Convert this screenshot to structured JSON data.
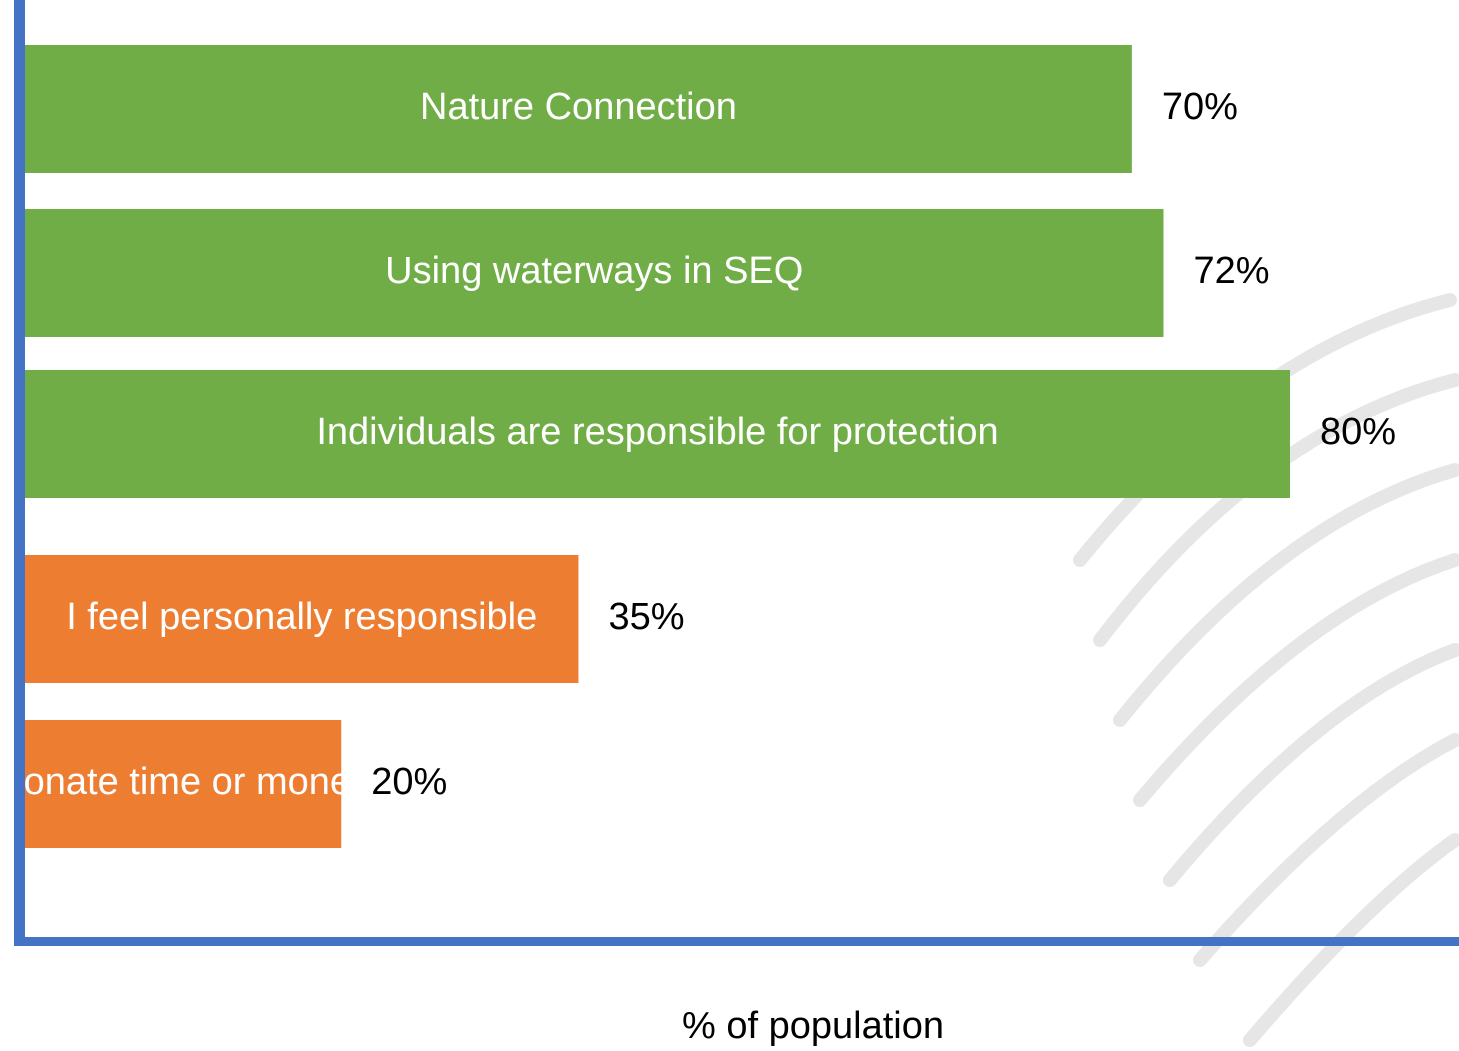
{
  "chart_data": {
    "type": "bar",
    "orientation": "horizontal",
    "categories": [
      "Nature Connection",
      "Using waterways in SEQ",
      "Individuals are responsible for protection",
      "I feel personally responsible",
      "Donate time or money"
    ],
    "values": [
      70,
      72,
      80,
      35,
      20
    ],
    "value_labels": [
      "70%",
      "72%",
      "80%",
      "35%",
      "20%"
    ],
    "colors": [
      "#70ad47",
      "#70ad47",
      "#70ad47",
      "#ed7d31",
      "#ed7d31"
    ],
    "axis_color": "#4472c4",
    "xlabel": "% of population"
  }
}
